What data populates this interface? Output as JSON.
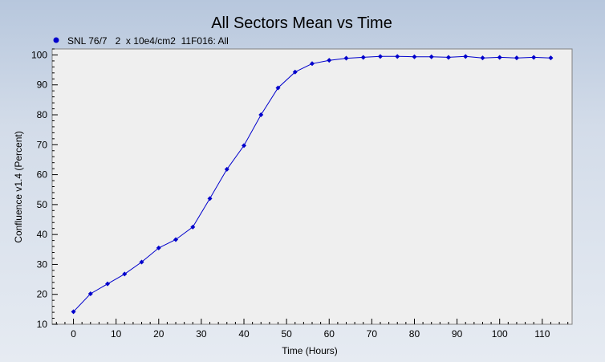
{
  "chart_data": {
    "type": "line",
    "title": "All Sectors Mean vs Time",
    "xlabel": "Time (Hours)",
    "ylabel": "Confluence v1.4 (Percent)",
    "xlim": [
      -5,
      117
    ],
    "ylim": [
      10,
      102
    ],
    "xticks": [
      0,
      10,
      20,
      30,
      40,
      50,
      60,
      70,
      80,
      90,
      100,
      110
    ],
    "yticks": [
      10,
      20,
      30,
      40,
      50,
      60,
      70,
      80,
      90,
      100
    ],
    "grid": false,
    "legend_position": "top-left",
    "series": [
      {
        "name": "SNL 76/7   2  x 10e4/cm2  11F016: All",
        "color": "#0000cc",
        "x": [
          0,
          4,
          8,
          12,
          16,
          20,
          24,
          28,
          32,
          36,
          40,
          44,
          48,
          52,
          56,
          60,
          64,
          68,
          72,
          76,
          80,
          84,
          88,
          92,
          96,
          100,
          104,
          108,
          112
        ],
        "y": [
          14.2,
          20.2,
          23.5,
          26.8,
          30.8,
          35.5,
          38.3,
          42.5,
          52.0,
          61.8,
          69.7,
          80.0,
          89.0,
          94.3,
          97.1,
          98.2,
          98.9,
          99.2,
          99.5,
          99.5,
          99.4,
          99.4,
          99.2,
          99.5,
          99.0,
          99.2,
          99.0,
          99.2,
          99.0
        ]
      }
    ]
  }
}
